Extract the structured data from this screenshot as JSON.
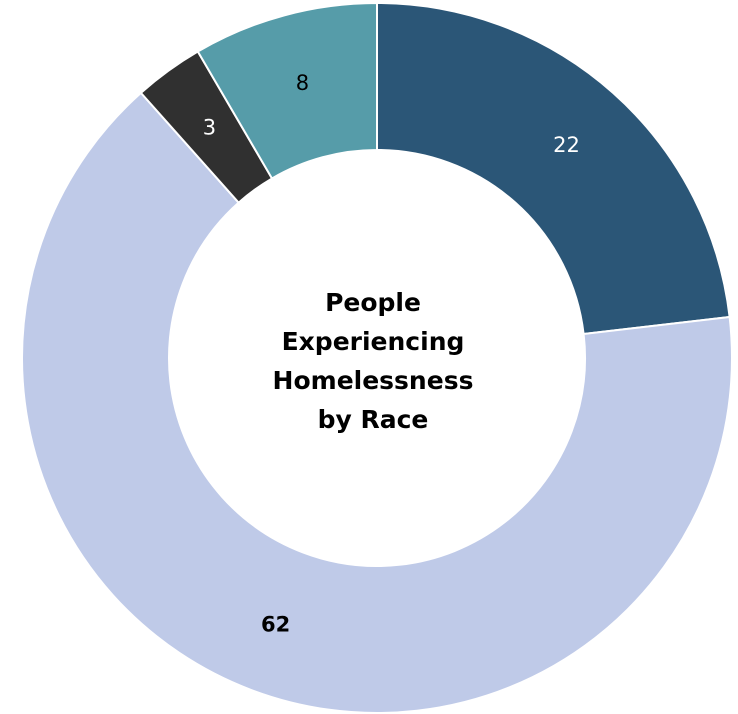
{
  "chart_data": {
    "type": "pie",
    "variant": "donut",
    "title_lines": [
      "People",
      "Experiencing",
      "Homelessness",
      "by Race"
    ],
    "start_angle_deg": 0,
    "direction": "clockwise",
    "slices": [
      {
        "value": 22,
        "label": "22",
        "color": "#2b5677",
        "label_color": "#ffffff",
        "label_weight": "normal"
      },
      {
        "value": 62,
        "label": "62",
        "color": "#bfcae8",
        "label_color": "#000000",
        "label_weight": "bold"
      },
      {
        "value": 3,
        "label": "3",
        "color": "#303030",
        "label_color": "#ffffff",
        "label_weight": "normal"
      },
      {
        "value": 8,
        "label": "8",
        "color": "#569ca9",
        "label_color": "#000000",
        "label_weight": "normal"
      }
    ]
  }
}
